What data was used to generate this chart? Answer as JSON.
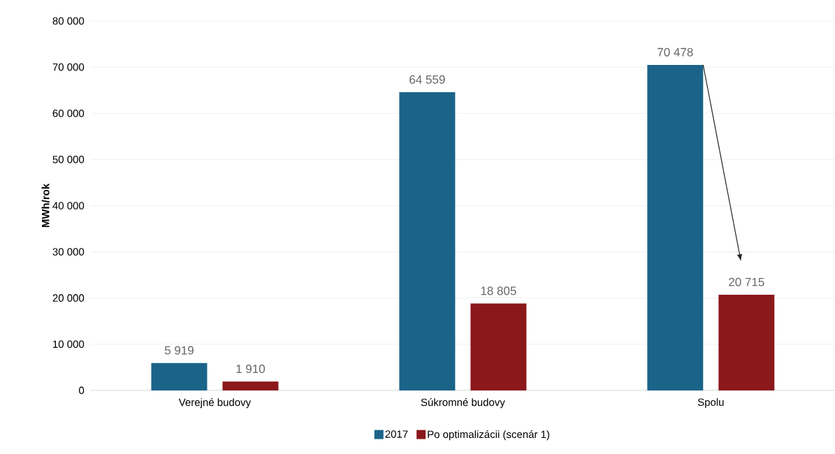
{
  "chart_data": {
    "type": "bar",
    "ylabel": "MWh/rok",
    "categories": [
      "Verejné budovy",
      "Súkromné budovy",
      "Spolu"
    ],
    "series": [
      {
        "name": "2017",
        "color": "#1b6389",
        "values": [
          5919,
          64559,
          70478
        ],
        "value_labels": [
          "5 919",
          "64 559",
          "70 478"
        ]
      },
      {
        "name": "Po optimalizácii (scenár 1)",
        "color": "#8b181b",
        "values": [
          1910,
          18805,
          20715
        ],
        "value_labels": [
          "1 910",
          "18 805",
          "20 715"
        ]
      }
    ],
    "ylim": [
      0,
      80000
    ],
    "yticks": [
      {
        "value": 0,
        "label": "0"
      },
      {
        "value": 10000,
        "label": "10 000"
      },
      {
        "value": 20000,
        "label": "20 000"
      },
      {
        "value": 30000,
        "label": "30 000"
      },
      {
        "value": 40000,
        "label": "40 000"
      },
      {
        "value": 50000,
        "label": "50 000"
      },
      {
        "value": 60000,
        "label": "60 000"
      },
      {
        "value": 70000,
        "label": "70 000"
      },
      {
        "value": 80000,
        "label": "80 000"
      }
    ],
    "grid": "y",
    "legend": "bottom"
  }
}
